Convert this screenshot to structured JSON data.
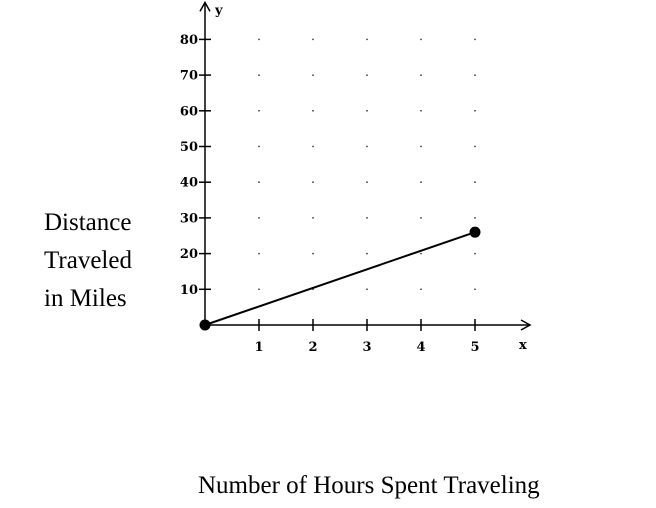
{
  "chart_data": {
    "type": "line",
    "xlabel": "Number of Hours Spent Traveling",
    "ylabel_lines": [
      "Distance",
      "Traveled",
      "in Miles"
    ],
    "x_axis_letter": "x",
    "y_axis_letter": "y",
    "xlim": [
      0,
      5
    ],
    "ylim": [
      0,
      80
    ],
    "x_ticks": [
      1,
      2,
      3,
      4,
      5
    ],
    "y_ticks": [
      10,
      20,
      30,
      40,
      50,
      60,
      70,
      80
    ],
    "grid": "dotted",
    "series": [
      {
        "x": [
          0,
          5
        ],
        "y": [
          0,
          26
        ],
        "endpoints": "filled"
      }
    ]
  }
}
